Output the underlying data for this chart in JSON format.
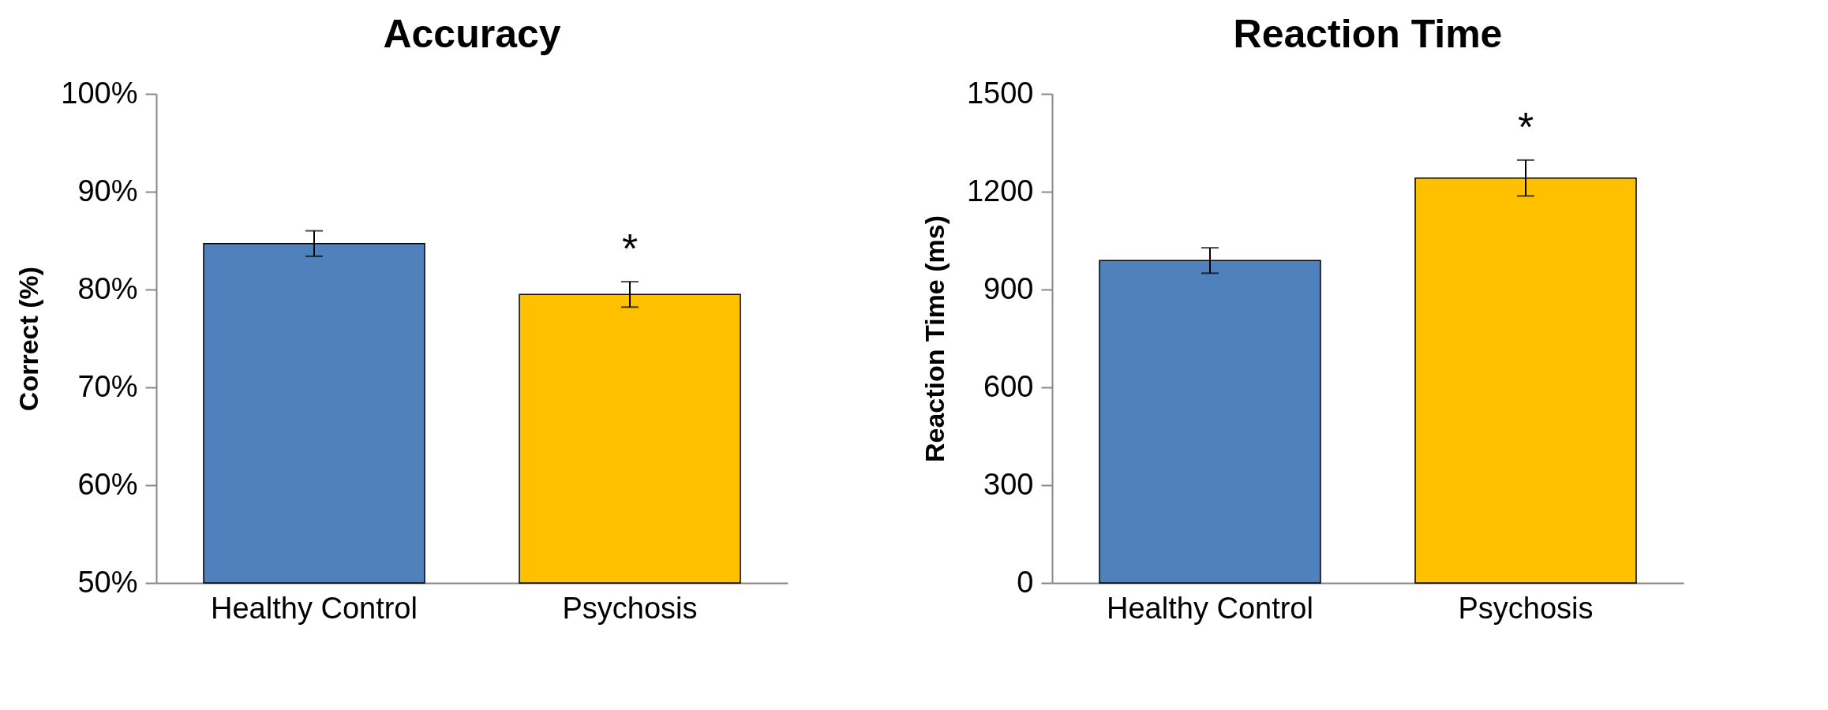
{
  "chart_data": [
    {
      "type": "bar",
      "title": "Accuracy",
      "ylabel": "Correct (%)",
      "categories": [
        "Healthy Control",
        "Psychosis"
      ],
      "values": [
        84.7,
        79.5
      ],
      "errors": [
        1.3,
        1.3
      ],
      "colors": [
        "#4f81bd",
        "#ffc000"
      ],
      "ylim": [
        50,
        100
      ],
      "yticks": [
        {
          "value": 50,
          "label": "50%"
        },
        {
          "value": 60,
          "label": "60%"
        },
        {
          "value": 70,
          "label": "70%"
        },
        {
          "value": 80,
          "label": "80%"
        },
        {
          "value": 90,
          "label": "90%"
        },
        {
          "value": 100,
          "label": "100%"
        }
      ],
      "grid": false,
      "annotations": [
        "*"
      ]
    },
    {
      "type": "bar",
      "title": "Reaction Time",
      "ylabel": "Reaction Time (ms)",
      "categories": [
        "Healthy Control",
        "Psychosis"
      ],
      "values": [
        989,
        1242
      ],
      "errors": [
        39,
        55
      ],
      "colors": [
        "#4f81bd",
        "#ffc000"
      ],
      "ylim": [
        0,
        1500
      ],
      "yticks": [
        0,
        300,
        600,
        900,
        {
          "value": 1200,
          "label": "1200"
        },
        {
          "value": 1500,
          "label": "1500"
        }
      ],
      "grid": false,
      "annotations": [
        "*"
      ]
    }
  ]
}
